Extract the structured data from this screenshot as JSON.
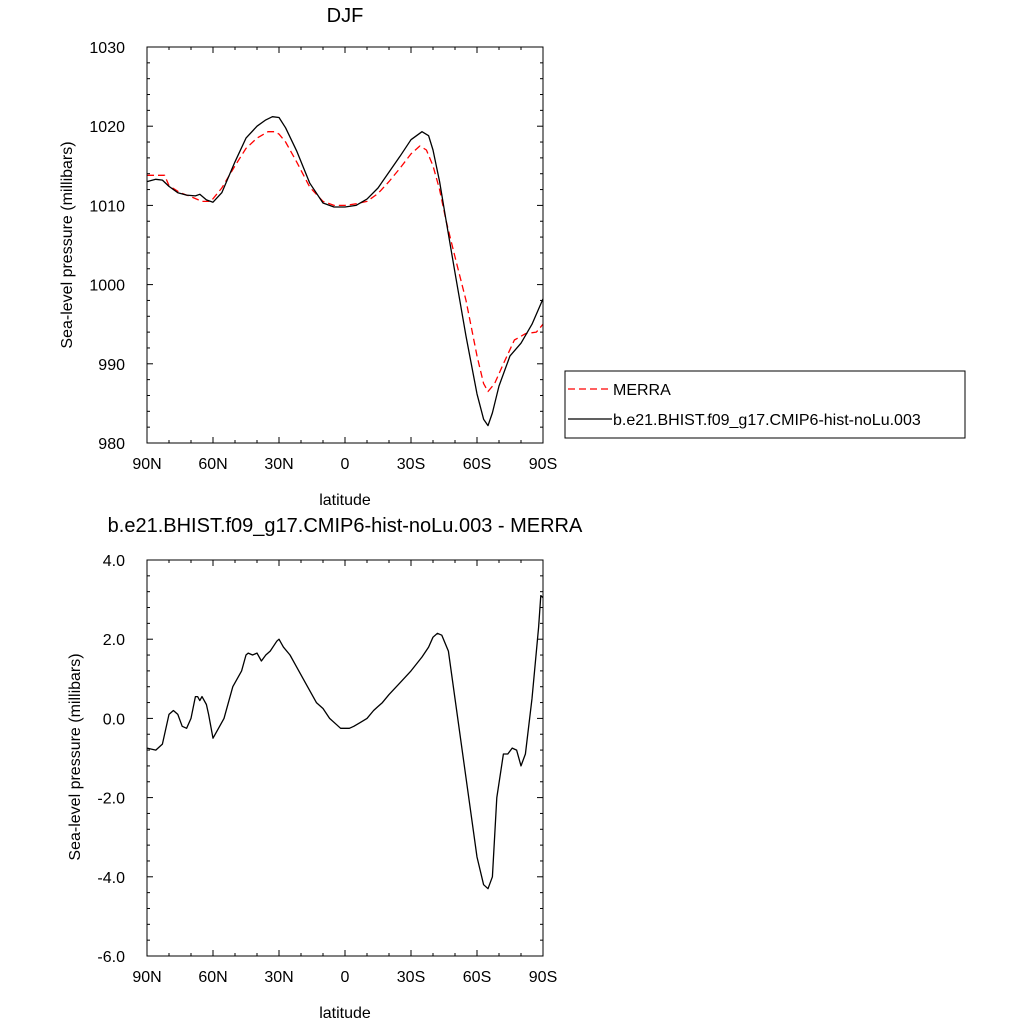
{
  "chart_data": [
    {
      "type": "line",
      "title": "DJF",
      "xlabel": "latitude",
      "ylabel": "Sea-level pressure (millibars)",
      "xlim": [
        90,
        -90
      ],
      "ylim": [
        980,
        1030
      ],
      "x_ticks": [
        90,
        60,
        30,
        0,
        -30,
        -60,
        -90
      ],
      "x_tick_labels": [
        "90N",
        "60N",
        "30N",
        "0",
        "30S",
        "60S",
        "90S"
      ],
      "y_ticks": [
        980,
        990,
        1000,
        1010,
        1020,
        1030
      ],
      "y_tick_labels": [
        "980",
        "990",
        "1000",
        "1010",
        "1020",
        "1030"
      ],
      "legend": "right",
      "series": [
        {
          "name": "MERRA",
          "color": "#ff0000",
          "dashed": true,
          "x": [
            90,
            84,
            82,
            80,
            75,
            70,
            65,
            61,
            56,
            50,
            45,
            40,
            35,
            32,
            30,
            27,
            22,
            16,
            10,
            5,
            0,
            -5,
            -10,
            -15,
            -20,
            -25,
            -30,
            -34,
            -37,
            -40,
            -43,
            -46,
            -50,
            -55,
            -60,
            -63,
            -65,
            -68,
            -72,
            -77,
            -82,
            -87,
            -90
          ],
          "y": [
            1013.8,
            1013.8,
            1013.8,
            1012.5,
            1011.6,
            1011.1,
            1010.5,
            1010.5,
            1012.2,
            1015.0,
            1017.2,
            1018.5,
            1019.3,
            1019.3,
            1019.0,
            1018.0,
            1015.5,
            1012.3,
            1010.5,
            1010.0,
            1010.0,
            1010.2,
            1010.5,
            1011.5,
            1013.0,
            1014.7,
            1016.5,
            1017.5,
            1017.0,
            1015.0,
            1012.0,
            1008.0,
            1003.5,
            998.0,
            991.0,
            987.5,
            986.5,
            987.5,
            990.0,
            993.0,
            993.8,
            994.0,
            995.0
          ]
        },
        {
          "name": "b.e21.BHIST.f09_g17.CMIP6-hist-noLu.003",
          "color": "#000000",
          "dashed": false,
          "x": [
            90,
            86,
            83,
            80,
            76,
            72,
            68,
            66,
            63,
            60,
            56,
            50,
            45,
            40,
            36,
            33,
            30,
            27,
            22,
            16,
            10,
            5,
            0,
            -5,
            -10,
            -15,
            -20,
            -25,
            -30,
            -35,
            -38,
            -40,
            -43,
            -46,
            -50,
            -55,
            -60,
            -63,
            -65,
            -67,
            -70,
            -75,
            -80,
            -85,
            -90
          ],
          "y": [
            1013.0,
            1013.3,
            1013.2,
            1012.4,
            1011.6,
            1011.3,
            1011.2,
            1011.4,
            1010.7,
            1010.4,
            1011.6,
            1015.5,
            1018.5,
            1020.0,
            1020.8,
            1021.2,
            1021.1,
            1019.8,
            1016.9,
            1012.8,
            1010.3,
            1009.8,
            1009.8,
            1010.0,
            1010.8,
            1012.2,
            1014.2,
            1016.2,
            1018.3,
            1019.3,
            1018.8,
            1017.0,
            1013.0,
            1008.0,
            1001.5,
            993.5,
            986.2,
            983.0,
            982.2,
            983.8,
            987.2,
            991.0,
            992.6,
            995.0,
            998.2
          ]
        }
      ]
    },
    {
      "type": "line",
      "title": "b.e21.BHIST.f09_g17.CMIP6-hist-noLu.003 - MERRA",
      "xlabel": "latitude",
      "ylabel": "Sea-level pressure (millibars)",
      "xlim": [
        90,
        -90
      ],
      "ylim": [
        -6.0,
        4.0
      ],
      "x_ticks": [
        90,
        60,
        30,
        0,
        -30,
        -60,
        -90
      ],
      "x_tick_labels": [
        "90N",
        "60N",
        "30N",
        "0",
        "30S",
        "60S",
        "90S"
      ],
      "y_ticks": [
        -6.0,
        -4.0,
        -2.0,
        0.0,
        2.0,
        4.0
      ],
      "y_tick_labels": [
        "-6.0",
        "-4.0",
        "-2.0",
        "0.0",
        "2.0",
        "4.0"
      ],
      "series": [
        {
          "color": "#000000",
          "x": [
            90,
            86,
            83,
            80,
            78,
            76,
            74,
            72,
            70,
            68,
            67,
            66,
            65,
            63,
            62,
            60,
            58,
            55,
            51,
            47,
            45,
            44,
            42,
            40,
            38,
            36,
            34,
            31,
            30,
            28,
            25,
            22,
            18,
            13,
            10,
            7,
            4,
            2,
            0,
            -2,
            -4,
            -7,
            -10,
            -13,
            -15,
            -17,
            -20,
            -25,
            -30,
            -35,
            -38,
            -40,
            -42,
            -44,
            -47,
            -50,
            -55,
            -60,
            -63,
            -65,
            -67,
            -69,
            -72,
            -74,
            -76,
            -78,
            -80,
            -82,
            -85,
            -88,
            -89,
            -90
          ],
          "y": [
            -0.75,
            -0.8,
            -0.65,
            0.1,
            0.2,
            0.1,
            -0.2,
            -0.25,
            0.0,
            0.55,
            0.55,
            0.45,
            0.55,
            0.35,
            0.1,
            -0.5,
            -0.3,
            0.0,
            0.8,
            1.2,
            1.6,
            1.65,
            1.6,
            1.65,
            1.45,
            1.6,
            1.7,
            1.95,
            2.0,
            1.8,
            1.6,
            1.3,
            0.9,
            0.4,
            0.25,
            0.0,
            -0.15,
            -0.25,
            -0.25,
            -0.25,
            -0.2,
            -0.1,
            0.0,
            0.2,
            0.3,
            0.4,
            0.6,
            0.9,
            1.2,
            1.55,
            1.8,
            2.05,
            2.15,
            2.1,
            1.7,
            0.5,
            -1.5,
            -3.5,
            -4.2,
            -4.3,
            -4.0,
            -2.0,
            -0.9,
            -0.9,
            -0.75,
            -0.8,
            -1.2,
            -0.9,
            0.5,
            2.3,
            3.1,
            3.05
          ]
        }
      ]
    }
  ]
}
